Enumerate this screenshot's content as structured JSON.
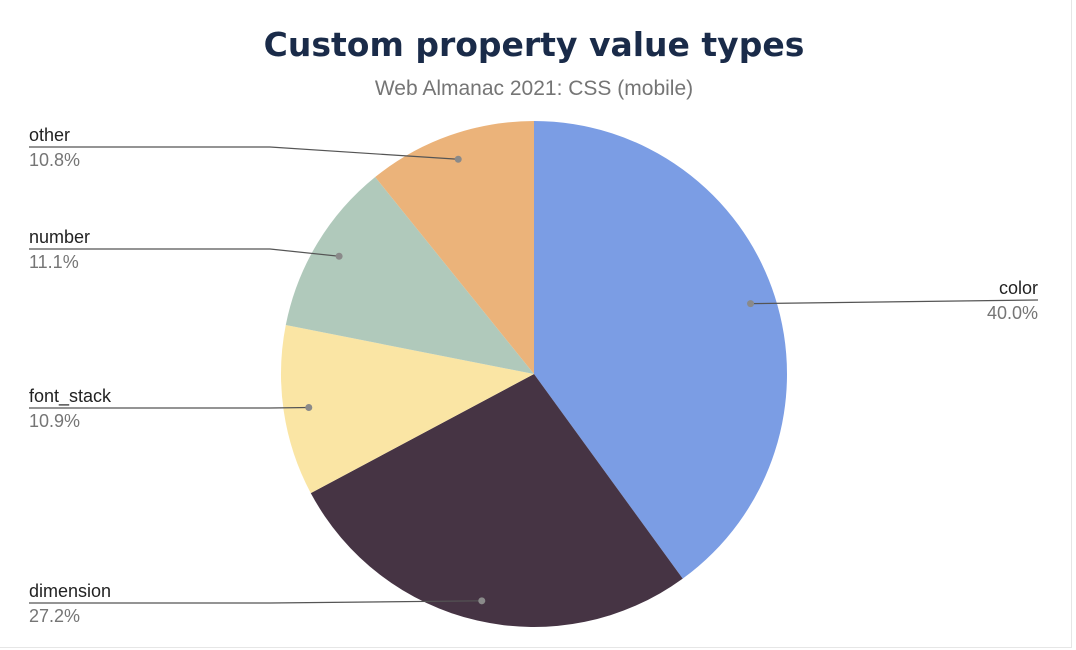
{
  "chart_data": {
    "type": "pie",
    "title": "Custom property value types",
    "subtitle": "Web Almanac 2021: CSS (mobile)",
    "legend": "labels",
    "slices": [
      {
        "label": "color",
        "value": 40.0,
        "percent_label": "40.0%",
        "color": "#7b9de4"
      },
      {
        "label": "dimension",
        "value": 27.2,
        "percent_label": "27.2%",
        "color": "#463444"
      },
      {
        "label": "font_stack",
        "value": 10.9,
        "percent_label": "10.9%",
        "color": "#fae5a4"
      },
      {
        "label": "number",
        "value": 11.1,
        "percent_label": "11.1%",
        "color": "#b0c9bb"
      },
      {
        "label": "other",
        "value": 10.8,
        "percent_label": "10.8%",
        "color": "#ebb37a"
      }
    ]
  }
}
